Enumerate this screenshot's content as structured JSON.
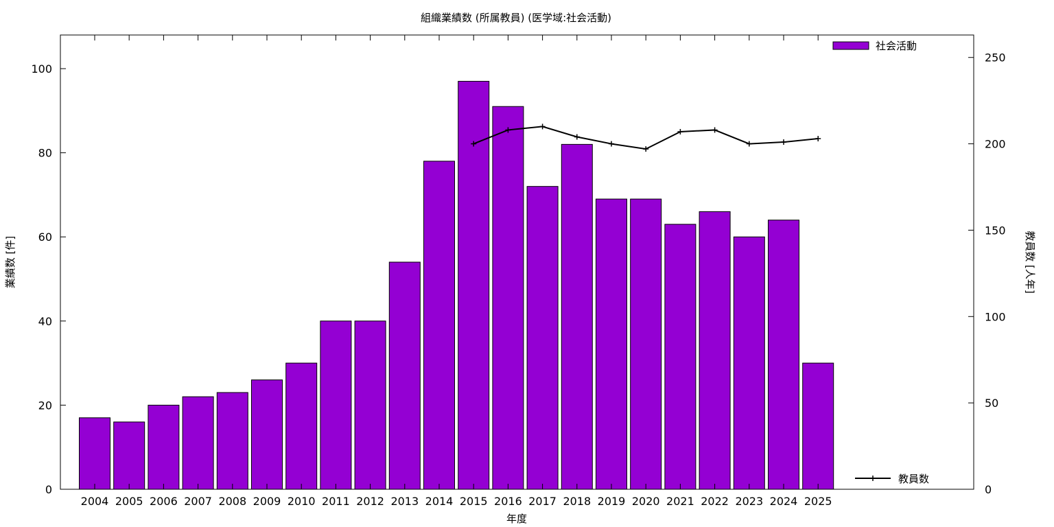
{
  "chart_data": {
    "type": "bar",
    "title": "組織業績数 (所属教員) (医学域:社会活動)",
    "xlabel": "年度",
    "ylabel": "業績数 [件]",
    "y2label": "教員数 [人年]",
    "categories": [
      "2004",
      "2005",
      "2006",
      "2007",
      "2008",
      "2009",
      "2010",
      "2011",
      "2012",
      "2013",
      "2014",
      "2015",
      "2016",
      "2017",
      "2018",
      "2019",
      "2020",
      "2021",
      "2022",
      "2023",
      "2024",
      "2025"
    ],
    "ylim": [
      0,
      108
    ],
    "y2lim": [
      0,
      263
    ],
    "yticks": [
      0,
      20,
      40,
      60,
      80,
      100
    ],
    "y2ticks": [
      0,
      50,
      100,
      150,
      200,
      250
    ],
    "grid": false,
    "legend_position": "top-right",
    "bar_series": {
      "name": "社会活動",
      "color": "#9400d3",
      "values": [
        17,
        16,
        20,
        22,
        23,
        26,
        30,
        40,
        40,
        54,
        78,
        97,
        91,
        72,
        82,
        69,
        69,
        63,
        66,
        60,
        64,
        30
      ]
    },
    "line_series": {
      "name": "教員数",
      "color": "#000000",
      "categories": [
        "2015",
        "2016",
        "2017",
        "2018",
        "2019",
        "2020",
        "2021",
        "2022",
        "2023",
        "2024",
        "2025"
      ],
      "values": [
        200,
        208,
        210,
        204,
        200,
        197,
        207,
        208,
        200,
        201,
        203
      ]
    }
  }
}
